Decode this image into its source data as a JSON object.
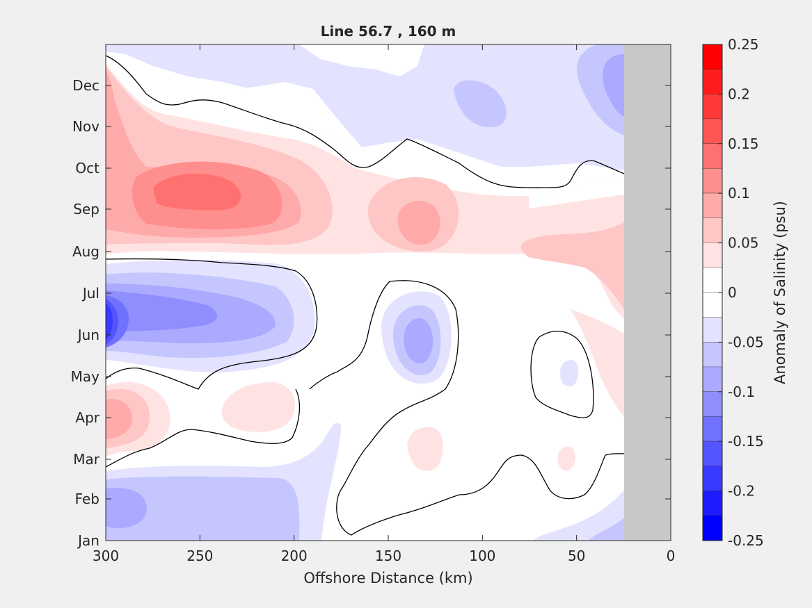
{
  "chart_data": {
    "type": "heatmap",
    "subtype": "filled-contour",
    "title": "Line 56.7 , 160 m",
    "xlabel": "Offshore Distance (km)",
    "ylabel": "",
    "xlim": [
      300,
      0
    ],
    "x_direction": "reversed",
    "x_ticks": [
      300,
      250,
      200,
      150,
      100,
      50,
      0
    ],
    "y_ticks": [
      "Jan",
      "Feb",
      "Mar",
      "Apr",
      "May",
      "Jun",
      "Jul",
      "Aug",
      "Sep",
      "Oct",
      "Nov",
      "Dec"
    ],
    "grid": false,
    "masked_region_km": [
      0,
      25
    ],
    "masked_color": "#c8c8c8",
    "colorbar": {
      "label": "Anomaly of Salinity (psu)",
      "range": [
        -0.25,
        0.25
      ],
      "ticks": [
        0.25,
        0.2,
        0.15,
        0.1,
        0.05,
        0,
        -0.05,
        -0.1,
        -0.15,
        -0.2,
        -0.25
      ],
      "levels": [
        {
          "lo": 0.225,
          "hi": 0.25,
          "color": "#ff0000"
        },
        {
          "lo": 0.2,
          "hi": 0.225,
          "color": "#ff1c1c"
        },
        {
          "lo": 0.175,
          "hi": 0.2,
          "color": "#ff3939"
        },
        {
          "lo": 0.15,
          "hi": 0.175,
          "color": "#ff5555"
        },
        {
          "lo": 0.125,
          "hi": 0.15,
          "color": "#ff7171"
        },
        {
          "lo": 0.1,
          "hi": 0.125,
          "color": "#ff8e8e"
        },
        {
          "lo": 0.075,
          "hi": 0.1,
          "color": "#ffaaaa"
        },
        {
          "lo": 0.05,
          "hi": 0.075,
          "color": "#ffc6c6"
        },
        {
          "lo": 0.025,
          "hi": 0.05,
          "color": "#ffe3e3"
        },
        {
          "lo": 0,
          "hi": 0.025,
          "color": "#ffffff"
        },
        {
          "lo": -0.025,
          "hi": 0,
          "color": "#ffffff"
        },
        {
          "lo": -0.05,
          "hi": -0.025,
          "color": "#e3e3ff"
        },
        {
          "lo": -0.075,
          "hi": -0.05,
          "color": "#c6c6ff"
        },
        {
          "lo": -0.1,
          "hi": -0.075,
          "color": "#aaaaff"
        },
        {
          "lo": -0.125,
          "hi": -0.1,
          "color": "#8e8eff"
        },
        {
          "lo": -0.15,
          "hi": -0.125,
          "color": "#7171ff"
        },
        {
          "lo": -0.175,
          "hi": -0.15,
          "color": "#5555ff"
        },
        {
          "lo": -0.2,
          "hi": -0.175,
          "color": "#3939ff"
        },
        {
          "lo": -0.225,
          "hi": -0.2,
          "color": "#1c1cff"
        },
        {
          "lo": -0.25,
          "hi": -0.225,
          "color": "#0000ff"
        }
      ]
    },
    "features": [
      {
        "kind": "positive",
        "center_km": 255,
        "center_month": "Sep",
        "peak": 0.15
      },
      {
        "kind": "positive",
        "center_km": 135,
        "center_month": "Sep",
        "peak": 0.1
      },
      {
        "kind": "positive",
        "center_km": 300,
        "center_month": "Apr",
        "peak": 0.1
      },
      {
        "kind": "negative",
        "center_km": 300,
        "center_month": "Jun",
        "peak": -0.2
      },
      {
        "kind": "negative",
        "center_km": 135,
        "center_month": "Jun",
        "peak": -0.1
      },
      {
        "kind": "negative",
        "center_km": 30,
        "center_month": "Dec",
        "peak": -0.1
      },
      {
        "kind": "negative",
        "center_km": 290,
        "center_month": "Feb",
        "peak": -0.075
      }
    ]
  }
}
